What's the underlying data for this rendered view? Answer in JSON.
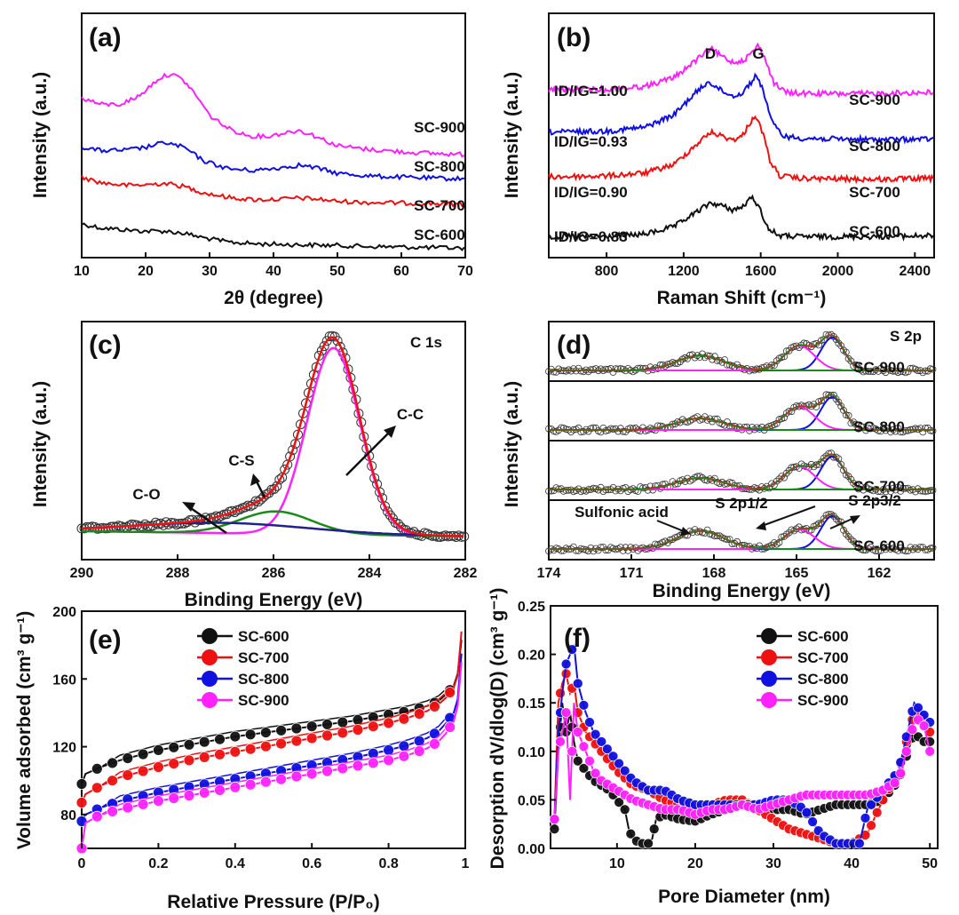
{
  "colors": {
    "black": "#111111",
    "red": "#ee1111",
    "blue": "#1010e0",
    "magenta": "#ff22ff",
    "green": "#1a8a1a",
    "navy": "#202090",
    "gray": "#333333"
  },
  "chart_data": [
    {
      "panel": "(a)",
      "type": "line",
      "xlabel": "2θ (degree)",
      "ylabel": "Intensity (a.u.)",
      "xlim": [
        10,
        70
      ],
      "xticks": [
        10,
        20,
        30,
        40,
        50,
        60,
        70
      ],
      "series": [
        {
          "name": "SC-600",
          "color": "black",
          "x": [
            10,
            13,
            17,
            20,
            23,
            26,
            29,
            33,
            37,
            41,
            45,
            50,
            55,
            60,
            65,
            70
          ],
          "y": [
            0.45,
            0.38,
            0.34,
            0.32,
            0.32,
            0.28,
            0.2,
            0.12,
            0.09,
            0.08,
            0.07,
            0.06,
            0.04,
            0.03,
            0.02,
            0.01
          ]
        },
        {
          "name": "SC-700",
          "color": "red",
          "x": [
            10,
            13,
            17,
            20,
            23,
            26,
            29,
            33,
            37,
            41,
            44,
            47,
            50,
            55,
            60,
            65,
            70
          ],
          "y": [
            1.3,
            1.2,
            1.15,
            1.16,
            1.19,
            1.13,
            1.02,
            0.93,
            0.89,
            0.9,
            0.92,
            0.9,
            0.86,
            0.84,
            0.83,
            0.82,
            0.81
          ]
        },
        {
          "name": "SC-800",
          "color": "blue",
          "x": [
            10,
            13,
            17,
            20,
            23,
            26,
            29,
            33,
            37,
            41,
            44,
            47,
            50,
            55,
            60,
            65,
            70
          ],
          "y": [
            1.85,
            1.78,
            1.79,
            1.84,
            1.93,
            1.84,
            1.6,
            1.45,
            1.42,
            1.47,
            1.52,
            1.46,
            1.37,
            1.32,
            1.3,
            1.28,
            1.27
          ]
        },
        {
          "name": "SC-900",
          "color": "magenta",
          "x": [
            10,
            13,
            16,
            19,
            22,
            24,
            26,
            28,
            30,
            33,
            36,
            39,
            42,
            44,
            46,
            48,
            50,
            55,
            60,
            65,
            70
          ],
          "y": [
            2.74,
            2.62,
            2.62,
            2.77,
            3.09,
            3.18,
            3.05,
            2.77,
            2.42,
            2.18,
            2.05,
            2.04,
            2.11,
            2.15,
            2.07,
            1.97,
            1.87,
            1.8,
            1.76,
            1.73,
            1.71
          ]
        }
      ],
      "annotations": [
        "SC-900",
        "SC-800",
        "SC-700",
        "SC-600"
      ]
    },
    {
      "panel": "(b)",
      "type": "line",
      "xlabel": "Raman Shift (cm⁻¹)",
      "ylabel": "Intensity (a.u.)",
      "xlim": [
        500,
        2500
      ],
      "xticks": [
        800,
        1200,
        1600,
        2000,
        2400
      ],
      "series": [
        {
          "name": "SC-600",
          "color": "black",
          "ratio_label": "ID/IG=0.83",
          "x": [
            500,
            800,
            1000,
            1150,
            1250,
            1340,
            1400,
            1450,
            1500,
            1560,
            1600,
            1640,
            1700,
            1800,
            2000,
            2200,
            2500
          ],
          "y": [
            0.1,
            0.1,
            0.15,
            0.3,
            0.55,
            0.78,
            0.72,
            0.64,
            0.68,
            0.9,
            0.62,
            0.25,
            0.12,
            0.1,
            0.1,
            0.1,
            0.12
          ]
        },
        {
          "name": "SC-700",
          "color": "red",
          "ratio_label": "ID/IG=0.90",
          "x": [
            500,
            800,
            1000,
            1150,
            1250,
            1340,
            1400,
            1450,
            1500,
            1570,
            1610,
            1650,
            1700,
            1800,
            2000,
            2200,
            2500
          ],
          "y": [
            1.3,
            1.32,
            1.38,
            1.55,
            1.9,
            2.2,
            2.12,
            2.05,
            2.1,
            2.55,
            2.2,
            1.6,
            1.32,
            1.27,
            1.26,
            1.25,
            1.27
          ]
        },
        {
          "name": "SC-800",
          "color": "blue",
          "ratio_label": "ID/IG=0.93",
          "x": [
            500,
            800,
            1000,
            1150,
            1250,
            1330,
            1390,
            1450,
            1500,
            1580,
            1620,
            1660,
            1720,
            1800,
            2000,
            2200,
            2500
          ],
          "y": [
            2.2,
            2.22,
            2.3,
            2.55,
            2.95,
            3.22,
            3.05,
            2.93,
            2.97,
            3.35,
            2.95,
            2.38,
            2.12,
            2.08,
            2.06,
            2.05,
            2.06
          ]
        },
        {
          "name": "SC-900",
          "color": "magenta",
          "ratio_label": "ID/IG=1.00",
          "x": [
            500,
            800,
            1000,
            1150,
            1250,
            1340,
            1400,
            1460,
            1520,
            1590,
            1630,
            1670,
            1730,
            1800,
            2000,
            2200,
            2500
          ],
          "y": [
            3.05,
            3.06,
            3.12,
            3.3,
            3.6,
            3.88,
            3.72,
            3.6,
            3.67,
            3.95,
            3.6,
            3.18,
            3.0,
            2.98,
            2.97,
            2.98,
            3.0
          ]
        }
      ],
      "peak_labels": [
        "D",
        "G"
      ],
      "annotations": [
        "SC-900",
        "SC-800",
        "SC-700",
        "SC-600"
      ]
    },
    {
      "panel": "(c)",
      "type": "line",
      "title": "C 1s",
      "xlabel": "Binding Energy (eV)",
      "ylabel": "Intensity (a.u.)",
      "xlim": [
        290,
        282
      ],
      "xticks": [
        290,
        288,
        286,
        284,
        282
      ],
      "series": [
        {
          "name": "C-C",
          "color": "magenta",
          "center": 284.75,
          "sigma": 0.55,
          "amp": 1.0
        },
        {
          "name": "C-S",
          "color": "green",
          "center": 285.95,
          "sigma": 0.75,
          "amp": 0.12
        },
        {
          "name": "C-O",
          "color": "navy",
          "center": 287.1,
          "sigma": 1.8,
          "amp": 0.055
        },
        {
          "name": "Fit",
          "color": "red"
        },
        {
          "name": "Data",
          "color": "gray"
        }
      ],
      "annotations": [
        "C-C",
        "C-S",
        "C-O"
      ]
    },
    {
      "panel": "(d)",
      "type": "line",
      "title": "S 2p",
      "xlabel": "Binding Energy (eV)",
      "ylabel": "Intensity (a.u.)",
      "xlim": [
        174,
        160
      ],
      "xticks": [
        174,
        171,
        168,
        165,
        162
      ],
      "subpanels": [
        "SC-900",
        "SC-800",
        "SC-700",
        "SC-600"
      ],
      "components": [
        {
          "name": "S 2p3/2",
          "color": "blue",
          "center": 163.7,
          "sigma": 0.42
        },
        {
          "name": "S 2p1/2",
          "color": "magenta",
          "center": 164.9,
          "sigma": 0.55
        },
        {
          "name": "Sulfonic acid",
          "color": "green",
          "center": 168.5,
          "sigma": 0.85
        }
      ],
      "annotations": [
        "Sulfonic acid",
        "S 2p1/2",
        "S 2p3/2"
      ]
    },
    {
      "panel": "(e)",
      "type": "line",
      "xlabel": "Relative Pressure (P/P₀)",
      "ylabel": "Volume adsorbed (cm³ g⁻¹)",
      "xlim": [
        0,
        1
      ],
      "ylim": [
        60,
        200
      ],
      "xticks": [
        0.0,
        0.2,
        0.4,
        0.6,
        0.8,
        1.0
      ],
      "yticks": [
        80,
        120,
        160,
        200
      ],
      "legend": "top-left",
      "series": [
        {
          "name": "SC-600",
          "color": "black",
          "x": [
            0,
            0.01,
            0.05,
            0.1,
            0.2,
            0.3,
            0.4,
            0.5,
            0.6,
            0.7,
            0.8,
            0.85,
            0.9,
            0.93,
            0.95,
            0.97,
            0.98,
            0.99
          ],
          "y": [
            98,
            104,
            108,
            112,
            118,
            122,
            126,
            129,
            132,
            135,
            139,
            141,
            144,
            147,
            151,
            156,
            163,
            183
          ]
        },
        {
          "name": "SC-700",
          "color": "red",
          "x": [
            0,
            0.01,
            0.05,
            0.1,
            0.2,
            0.3,
            0.4,
            0.5,
            0.6,
            0.7,
            0.8,
            0.85,
            0.9,
            0.93,
            0.95,
            0.97,
            0.98,
            0.99
          ],
          "y": [
            87,
            92,
            97,
            102,
            108,
            113,
            117,
            121,
            125,
            129,
            134,
            137,
            141,
            145,
            149,
            155,
            162,
            188
          ]
        },
        {
          "name": "SC-800",
          "color": "blue",
          "x": [
            0,
            0.01,
            0.05,
            0.1,
            0.2,
            0.3,
            0.4,
            0.5,
            0.6,
            0.7,
            0.8,
            0.85,
            0.9,
            0.93,
            0.95,
            0.97,
            0.98,
            0.99
          ],
          "y": [
            76,
            80,
            84,
            88,
            93,
            97,
            101,
            105,
            109,
            113,
            118,
            121,
            125,
            129,
            134,
            140,
            148,
            175
          ]
        },
        {
          "name": "SC-900",
          "color": "magenta",
          "x": [
            0,
            0.01,
            0.05,
            0.1,
            0.2,
            0.3,
            0.4,
            0.5,
            0.6,
            0.7,
            0.8,
            0.85,
            0.9,
            0.93,
            0.95,
            0.97,
            0.98,
            0.99
          ],
          "y": [
            60,
            75,
            80,
            83,
            88,
            92,
            96,
            100,
            104,
            108,
            112,
            115,
            119,
            123,
            128,
            135,
            144,
            170
          ]
        }
      ]
    },
    {
      "panel": "(f)",
      "type": "line",
      "xlabel": "Pore Diameter (nm)",
      "ylabel": "Desorption dV/dlog(D) (cm³ g⁻¹)",
      "xlim": [
        1.5,
        51
      ],
      "ylim": [
        0,
        0.25
      ],
      "xticks": [
        10,
        20,
        30,
        40,
        50
      ],
      "yticks": [
        0.0,
        0.05,
        0.1,
        0.15,
        0.2,
        0.25
      ],
      "legend": "top-right",
      "series": [
        {
          "name": "SC-600",
          "color": "black",
          "x": [
            2,
            2.5,
            3,
            3.5,
            4,
            4.5,
            5,
            6,
            7,
            8,
            9,
            10,
            11,
            11.5,
            12,
            13,
            14,
            14.5,
            15,
            16,
            18,
            20,
            22,
            24,
            26,
            28,
            30,
            32,
            34,
            36,
            38,
            40,
            42,
            44,
            46,
            48,
            49,
            50
          ],
          "y": [
            0.02,
            0.1,
            0.15,
            0.12,
            0.14,
            0.11,
            0.09,
            0.08,
            0.07,
            0.065,
            0.06,
            0.05,
            0.04,
            0.02,
            0.01,
            0.005,
            0.005,
            0.01,
            0.03,
            0.035,
            0.03,
            0.028,
            0.035,
            0.04,
            0.045,
            0.045,
            0.04,
            0.04,
            0.035,
            0.04,
            0.045,
            0.045,
            0.045,
            0.05,
            0.07,
            0.12,
            0.11,
            0.11
          ]
        },
        {
          "name": "SC-700",
          "color": "red",
          "x": [
            2,
            2.5,
            3,
            3.5,
            4,
            4.5,
            5,
            6,
            7,
            8,
            9,
            10,
            12,
            14,
            16,
            18,
            20,
            22,
            24,
            26,
            28,
            30,
            32,
            34,
            36,
            38,
            40,
            42,
            44,
            46,
            48,
            49,
            50
          ],
          "y": [
            0.03,
            0.15,
            0.17,
            0.18,
            0.16,
            0.17,
            0.14,
            0.12,
            0.11,
            0.1,
            0.09,
            0.08,
            0.065,
            0.06,
            0.05,
            0.045,
            0.04,
            0.045,
            0.05,
            0.05,
            0.04,
            0.03,
            0.02,
            0.015,
            0.01,
            0.005,
            0.005,
            0.015,
            0.05,
            0.08,
            0.14,
            0.14,
            0.12
          ]
        },
        {
          "name": "SC-800",
          "color": "blue",
          "x": [
            2,
            2.5,
            3,
            3.5,
            4,
            4.5,
            5,
            6,
            7,
            8,
            9,
            10,
            12,
            14,
            16,
            18,
            20,
            22,
            24,
            26,
            28,
            30,
            32,
            34,
            36,
            38,
            40,
            41,
            42,
            44,
            46,
            48,
            49,
            50
          ],
          "y": [
            0.03,
            0.12,
            0.16,
            0.19,
            0.2,
            0.21,
            0.17,
            0.14,
            0.12,
            0.11,
            0.1,
            0.09,
            0.07,
            0.06,
            0.06,
            0.05,
            0.045,
            0.045,
            0.045,
            0.045,
            0.045,
            0.05,
            0.05,
            0.04,
            0.015,
            0.005,
            0.005,
            0.005,
            0.04,
            0.06,
            0.08,
            0.15,
            0.14,
            0.13
          ]
        },
        {
          "name": "SC-900",
          "color": "magenta",
          "x": [
            2,
            2.5,
            3,
            3.5,
            4,
            4.5,
            5,
            6,
            7,
            8,
            9,
            10,
            12,
            14,
            16,
            18,
            20,
            22,
            24,
            26,
            28,
            30,
            32,
            34,
            36,
            38,
            40,
            42,
            44,
            46,
            48,
            49,
            50
          ],
          "y": [
            0.03,
            0.1,
            0.12,
            0.14,
            0.05,
            0.15,
            0.12,
            0.1,
            0.08,
            0.07,
            0.065,
            0.06,
            0.05,
            0.045,
            0.04,
            0.04,
            0.035,
            0.04,
            0.04,
            0.045,
            0.04,
            0.045,
            0.05,
            0.055,
            0.055,
            0.055,
            0.055,
            0.055,
            0.06,
            0.07,
            0.13,
            0.135,
            0.1
          ]
        }
      ]
    }
  ]
}
